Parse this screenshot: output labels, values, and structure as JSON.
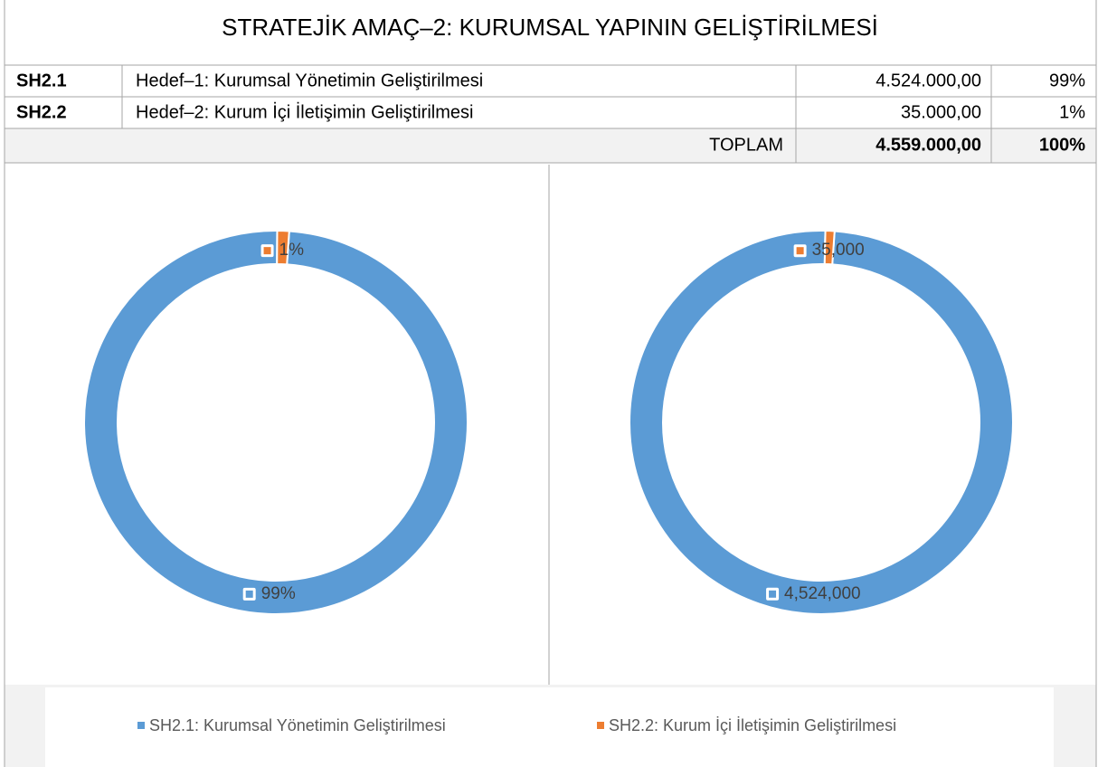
{
  "title": "STRATEJİK AMAÇ–2: KURUMSAL YAPININ GELİŞTİRİLMESİ",
  "table": {
    "rows": [
      [
        "SH2.1",
        "Hedef–1: Kurumsal Yönetimin Geliştirilmesi",
        "4.524.000,00",
        "99%"
      ],
      [
        "SH2.2",
        "Hedef–2: Kurum İçi İletişimin Geliştirilmesi",
        "35.000,00",
        "1%"
      ]
    ],
    "total": {
      "label": "TOPLAM",
      "amount": "4.559.000,00",
      "percent": "100%"
    }
  },
  "chart_data": [
    {
      "type": "donut",
      "categories": [
        "SH2.1: Kurumsal Yönetimin Geliştirilmesi",
        "SH2.2: Kurum İçi İletişimin Geliştirilmesi"
      ],
      "values": [
        99,
        1
      ],
      "value_labels": [
        "99%",
        "1%"
      ],
      "colors": [
        "#5b9bd5",
        "#ed7d31"
      ]
    },
    {
      "type": "donut",
      "values": [
        4524000,
        35000
      ],
      "value_labels": [
        "4,524,000",
        "35,000"
      ],
      "colors": [
        "#5b9bd5",
        "#ed7d31"
      ]
    }
  ]
}
